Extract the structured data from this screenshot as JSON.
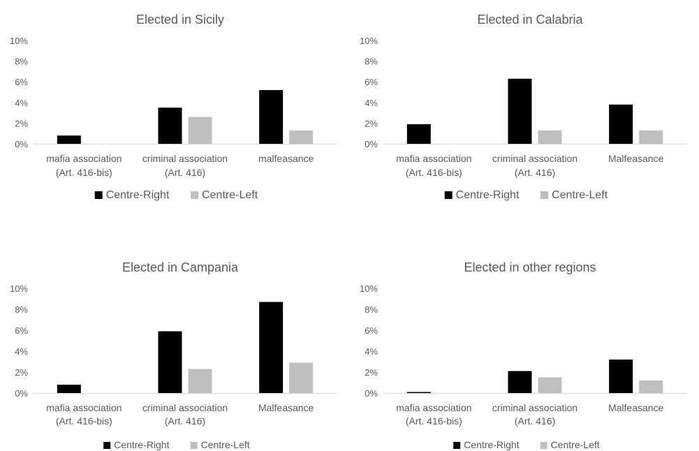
{
  "chart_data": [
    {
      "type": "bar",
      "title": "Elected in Sicily",
      "categories": [
        [
          "mafia association",
          "(Art. 416-bis)"
        ],
        [
          "criminal association",
          "(Art. 416)"
        ],
        [
          "malfeasance"
        ]
      ],
      "series": [
        {
          "name": "Centre-Right",
          "values": [
            0.8,
            3.5,
            5.2
          ],
          "color": "#000000"
        },
        {
          "name": "Centre-Left",
          "values": [
            0,
            2.6,
            1.3
          ],
          "color": "#bfbfbf"
        }
      ],
      "yticks": [
        "0%",
        "2%",
        "4%",
        "6%",
        "8%",
        "10%"
      ],
      "ylim": [
        0,
        10
      ],
      "legend": "bottom"
    },
    {
      "type": "bar",
      "title": "Elected in Calabria",
      "categories": [
        [
          "mafia association",
          "(Art. 416-bis)"
        ],
        [
          "criminal association",
          "(Art. 416)"
        ],
        [
          "Malfeasance"
        ]
      ],
      "series": [
        {
          "name": "Centre-Right",
          "values": [
            1.9,
            6.3,
            3.8
          ],
          "color": "#000000"
        },
        {
          "name": "Centre-Left",
          "values": [
            0,
            1.3,
            1.3
          ],
          "color": "#bfbfbf"
        }
      ],
      "yticks": [
        "0%",
        "2%",
        "4%",
        "6%",
        "8%",
        "10%"
      ],
      "ylim": [
        0,
        10
      ],
      "legend": "bottom"
    },
    {
      "type": "bar",
      "title": "Elected in Campania",
      "categories": [
        [
          "mafia association",
          "(Art. 416-bis)"
        ],
        [
          "criminal association",
          "(Art. 416)"
        ],
        [
          "Malfeasance"
        ]
      ],
      "series": [
        {
          "name": "Centre-Right",
          "values": [
            0.8,
            5.9,
            8.7
          ],
          "color": "#000000"
        },
        {
          "name": "Centre-Left",
          "values": [
            0,
            2.3,
            2.9
          ],
          "color": "#bfbfbf"
        }
      ],
      "yticks": [
        "0%",
        "2%",
        "4%",
        "6%",
        "8%",
        "10%"
      ],
      "ylim": [
        0,
        10
      ],
      "legend": "bottom"
    },
    {
      "type": "bar",
      "title": "Elected in other regions",
      "categories": [
        [
          "mafia association",
          "(Art. 416-bis)"
        ],
        [
          "criminal association",
          "(Art. 416)"
        ],
        [
          "Malfeasance"
        ]
      ],
      "series": [
        {
          "name": "Centre-Right",
          "values": [
            0.1,
            2.1,
            3.2
          ],
          "color": "#000000"
        },
        {
          "name": "Centre-Left",
          "values": [
            0,
            1.5,
            1.2
          ],
          "color": "#bfbfbf"
        }
      ],
      "yticks": [
        "0%",
        "2%",
        "4%",
        "6%",
        "8%",
        "10%"
      ],
      "ylim": [
        0,
        10
      ],
      "legend": "bottom"
    }
  ]
}
